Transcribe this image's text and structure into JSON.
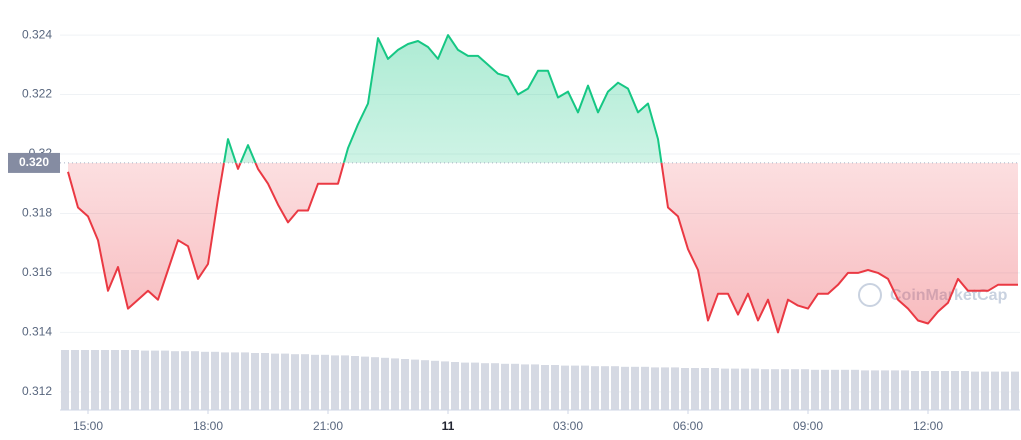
{
  "chart_data": {
    "type": "line",
    "x": [
      14.5,
      14.75,
      15,
      15.25,
      15.5,
      15.75,
      16,
      16.25,
      16.5,
      16.75,
      17,
      17.25,
      17.5,
      17.75,
      18,
      18.25,
      18.5,
      18.75,
      19,
      19.25,
      19.5,
      19.75,
      20,
      20.25,
      20.5,
      20.75,
      21,
      21.25,
      21.5,
      21.75,
      22,
      22.25,
      22.5,
      22.75,
      23,
      23.25,
      23.5,
      23.75,
      24,
      24.25,
      24.5,
      24.75,
      25,
      25.25,
      25.5,
      25.75,
      26,
      26.25,
      26.5,
      26.75,
      27,
      27.25,
      27.5,
      27.75,
      28,
      28.25,
      28.5,
      28.75,
      29,
      29.25,
      29.5,
      29.75,
      30,
      30.25,
      30.5,
      30.75,
      31,
      31.25,
      31.5,
      31.75,
      32,
      32.25,
      32.5,
      32.75,
      33,
      33.25,
      33.5,
      33.75,
      34,
      34.25,
      34.5,
      34.75,
      35,
      35.25,
      35.5,
      35.75,
      36,
      36.25,
      36.5,
      36.75,
      37,
      37.25,
      37.5,
      37.75,
      38,
      38.25
    ],
    "series": [
      {
        "color": "#16c784",
        "color_below": "#ea3943",
        "values": [
          0.3194,
          0.3182,
          0.3179,
          0.3171,
          0.3154,
          0.3162,
          0.3148,
          0.3151,
          0.3154,
          0.3151,
          0.3161,
          0.3171,
          0.3169,
          0.3158,
          0.3163,
          0.3185,
          0.3205,
          0.3195,
          0.3203,
          0.3195,
          0.319,
          0.3183,
          0.3177,
          0.3181,
          0.3181,
          0.319,
          0.319,
          0.319,
          0.3202,
          0.321,
          0.3217,
          0.3239,
          0.3232,
          0.3235,
          0.3237,
          0.3238,
          0.3236,
          0.3232,
          0.324,
          0.3235,
          0.3233,
          0.3233,
          0.323,
          0.3227,
          0.3226,
          0.322,
          0.3222,
          0.3228,
          0.3228,
          0.3219,
          0.3221,
          0.3214,
          0.3223,
          0.3214,
          0.3221,
          0.3224,
          0.3222,
          0.3214,
          0.3217,
          0.3205,
          0.3182,
          0.3179,
          0.3168,
          0.3161,
          0.3144,
          0.3153,
          0.3153,
          0.3146,
          0.3153,
          0.3144,
          0.3151,
          0.314,
          0.3151,
          0.3149,
          0.3148,
          0.3153,
          0.3153,
          0.3156,
          0.316,
          0.316,
          0.3161,
          0.316,
          0.3158,
          0.3151,
          0.3148,
          0.3144,
          0.3143,
          0.3147,
          0.315,
          0.3158,
          0.3154,
          0.3154,
          0.3154,
          0.3156,
          0.3156,
          0.3156
        ]
      }
    ],
    "volume": {
      "color": "#d5d9e3",
      "values": [
        100,
        100,
        100,
        100,
        100,
        100,
        100,
        100,
        99,
        99,
        99,
        98,
        98,
        98,
        97,
        97,
        96,
        96,
        96,
        95,
        95,
        94,
        94,
        93,
        93,
        92,
        92,
        91,
        91,
        90,
        89,
        88,
        87,
        86,
        85,
        84,
        83,
        82,
        81,
        80,
        79,
        79,
        78,
        78,
        77,
        77,
        76,
        76,
        75,
        75,
        74,
        74,
        74,
        73,
        73,
        73,
        72,
        72,
        72,
        71,
        71,
        71,
        70,
        70,
        70,
        70,
        69,
        69,
        69,
        69,
        68,
        68,
        68,
        68,
        68,
        67,
        67,
        67,
        67,
        67,
        66,
        66,
        66,
        66,
        66,
        65,
        65,
        65,
        65,
        65,
        65,
        64,
        64,
        64,
        64,
        64
      ]
    },
    "reference": {
      "value": 0.3197,
      "label": "0.320"
    },
    "xlim": [
      14.3,
      38.3
    ],
    "xticks": [
      {
        "value": 15,
        "label": "15:00"
      },
      {
        "value": 18,
        "label": "18:00"
      },
      {
        "value": 21,
        "label": "21:00"
      },
      {
        "value": 24,
        "label": "11"
      },
      {
        "value": 27,
        "label": "03:00"
      },
      {
        "value": 30,
        "label": "06:00"
      },
      {
        "value": 33,
        "label": "09:00"
      },
      {
        "value": 36,
        "label": "12:00"
      }
    ],
    "ylim": [
      0.31139,
      0.32518
    ],
    "yticks": [
      0.312,
      0.314,
      0.316,
      0.318,
      0.32,
      0.322,
      0.324
    ],
    "grid": true,
    "watermark": "CoinMarketCap"
  }
}
